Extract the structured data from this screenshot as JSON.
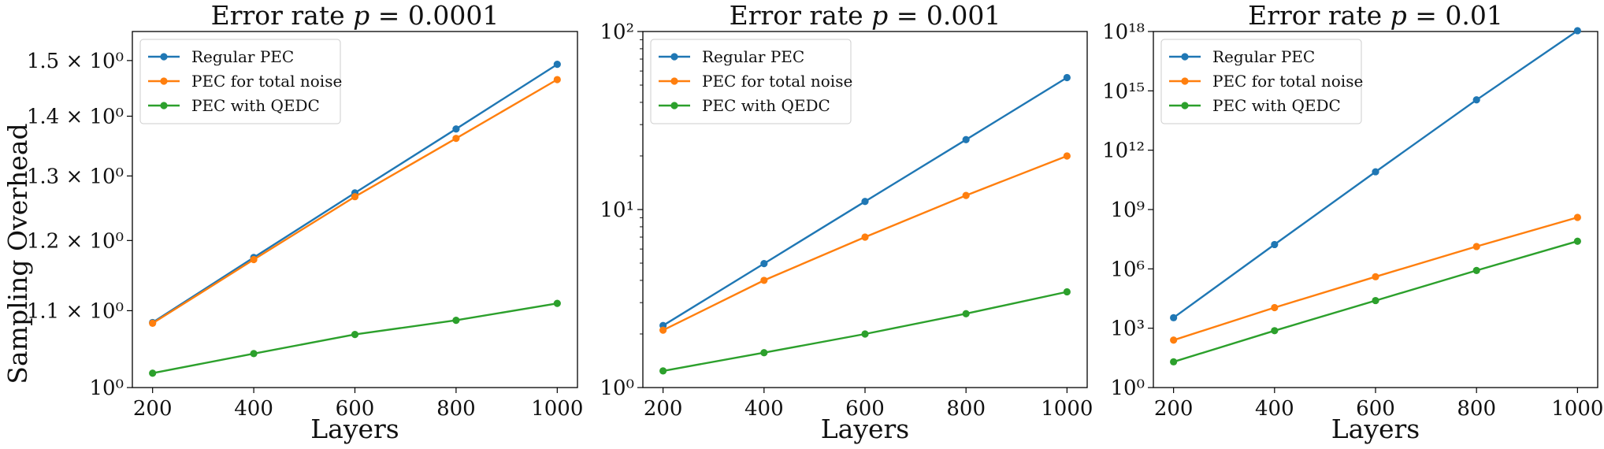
{
  "figure": {
    "ylabel": "Sampling Overhead"
  },
  "chart_data": [
    {
      "type": "line",
      "title": "Error rate p = 0.0001",
      "xlabel": "Layers",
      "ylabel": "Sampling Overhead",
      "yscale": "log",
      "grid": false,
      "legend_position": "upper-left",
      "x": [
        200,
        400,
        600,
        800,
        1000
      ],
      "xlim": [
        160,
        1040
      ],
      "ylim": [
        1.0,
        1.555
      ],
      "xticks": [
        200,
        400,
        600,
        800,
        1000
      ],
      "yticks": [
        {
          "value": 1.0,
          "label": "10⁰"
        },
        {
          "value": 1.1,
          "label": "1.1 × 10⁰"
        },
        {
          "value": 1.2,
          "label": "1.2 × 10⁰"
        },
        {
          "value": 1.3,
          "label": "1.3 × 10⁰"
        },
        {
          "value": 1.4,
          "label": "1.4 × 10⁰"
        },
        {
          "value": 1.5,
          "label": "1.5 × 10⁰"
        }
      ],
      "series": [
        {
          "name": "Regular PEC",
          "color": "#1f77b4",
          "values": [
            1.084,
            1.175,
            1.273,
            1.378,
            1.493
          ]
        },
        {
          "name": "PEC for total noise",
          "color": "#ff7f0e",
          "values": [
            1.083,
            1.172,
            1.267,
            1.362,
            1.465
          ]
        },
        {
          "name": "PEC with QEDC",
          "color": "#2ca02c",
          "values": [
            1.018,
            1.043,
            1.068,
            1.087,
            1.11
          ]
        }
      ]
    },
    {
      "type": "line",
      "title": "Error rate p = 0.001",
      "xlabel": "Layers",
      "ylabel": "",
      "yscale": "log",
      "grid": false,
      "legend_position": "upper-left",
      "x": [
        200,
        400,
        600,
        800,
        1000
      ],
      "xlim": [
        160,
        1040
      ],
      "ylim": [
        1,
        100
      ],
      "xticks": [
        200,
        400,
        600,
        800,
        1000
      ],
      "yticks": [
        {
          "value": 1,
          "label": "10⁰"
        },
        {
          "value": 10,
          "label": "10¹"
        },
        {
          "value": 100,
          "label": "10²"
        }
      ],
      "series": [
        {
          "name": "Regular PEC",
          "color": "#1f77b4",
          "values": [
            2.23,
            4.97,
            11.1,
            24.7,
            55.1
          ]
        },
        {
          "name": "PEC for total noise",
          "color": "#ff7f0e",
          "values": [
            2.1,
            4.0,
            7.0,
            12.0,
            20.0
          ]
        },
        {
          "name": "PEC with QEDC",
          "color": "#2ca02c",
          "values": [
            1.24,
            1.57,
            2.0,
            2.6,
            3.45
          ]
        }
      ]
    },
    {
      "type": "line",
      "title": "Error rate p = 0.01",
      "xlabel": "Layers",
      "ylabel": "",
      "yscale": "log",
      "grid": false,
      "legend_position": "upper-left",
      "x": [
        200,
        400,
        600,
        800,
        1000
      ],
      "xlim": [
        160,
        1040
      ],
      "ylim": [
        1,
        1e+18
      ],
      "xticks": [
        200,
        400,
        600,
        800,
        1000
      ],
      "yticks": [
        {
          "value": 1,
          "label": "10⁰"
        },
        {
          "value": 1000.0,
          "label": "10³"
        },
        {
          "value": 1000000.0,
          "label": "10⁶"
        },
        {
          "value": 1000000000.0,
          "label": "10⁹"
        },
        {
          "value": 1000000000000.0,
          "label": "10¹²"
        },
        {
          "value": 1000000000000000.0,
          "label": "10¹⁵"
        },
        {
          "value": 1e+18,
          "label": "10¹⁸"
        }
      ],
      "series": [
        {
          "name": "Regular PEC",
          "color": "#1f77b4",
          "values": [
            3400.0,
            17000000.0,
            81000000000.0,
            350000000000000.0,
            1.1e+18
          ]
        },
        {
          "name": "PEC for total noise",
          "color": "#ff7f0e",
          "values": [
            250.0,
            11000.0,
            400000.0,
            13500000.0,
            400000000.0
          ]
        },
        {
          "name": "PEC with QEDC",
          "color": "#2ca02c",
          "values": [
            20,
            750.0,
            25000.0,
            830000.0,
            25000000.0
          ]
        }
      ]
    }
  ]
}
